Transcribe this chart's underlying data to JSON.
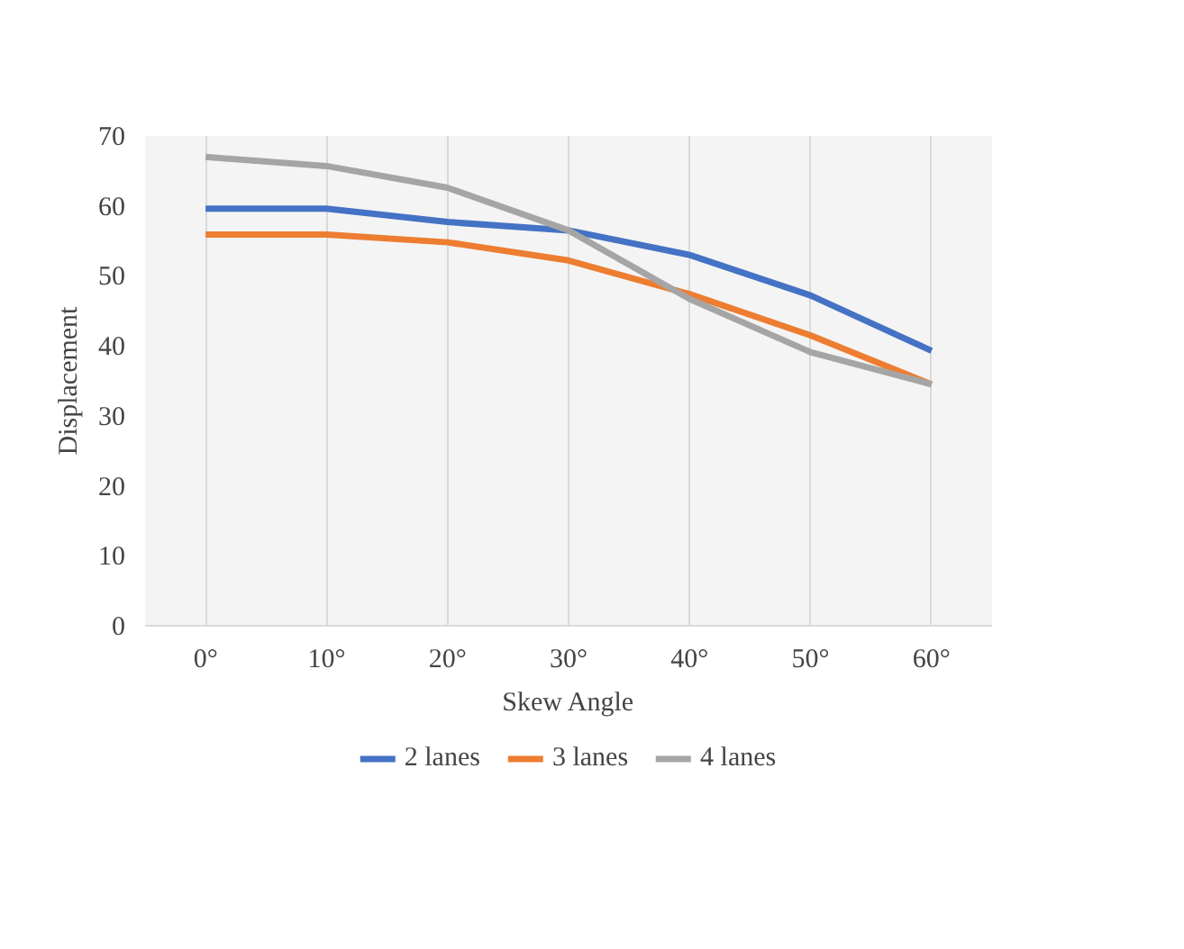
{
  "chart_data": {
    "type": "line",
    "xlabel": "Skew Angle",
    "ylabel": "Displacement",
    "categories": [
      "0°",
      "10°",
      "20°",
      "30°",
      "40°",
      "50°",
      "60°"
    ],
    "series": [
      {
        "name": "2 lanes",
        "color": "#4472c4",
        "values": [
          59.6,
          59.6,
          57.7,
          56.5,
          53,
          47.2,
          39.3
        ]
      },
      {
        "name": "3 lanes",
        "color": "#ed7d31",
        "values": [
          55.9,
          55.9,
          54.8,
          52.2,
          47.4,
          41.5,
          34.5
        ]
      },
      {
        "name": "4 lanes",
        "color": "#a5a5a5",
        "values": [
          67,
          65.7,
          62.6,
          56.5,
          46.7,
          39.1,
          34.5
        ]
      }
    ],
    "ylim": [
      0,
      70
    ],
    "yticks": [
      0,
      10,
      20,
      30,
      40,
      50,
      60,
      70
    ],
    "grid": "x",
    "legend": "bottom",
    "marker": "none",
    "line_style": "solid"
  }
}
